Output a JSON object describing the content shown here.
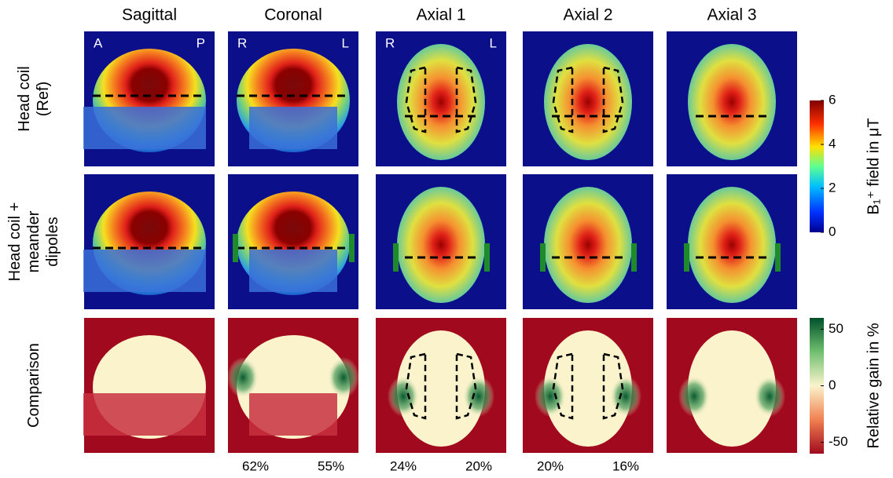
{
  "columns": [
    "Sagittal",
    "Coronal",
    "Axial 1",
    "Axial 2",
    "Axial 3"
  ],
  "rows": [
    [
      "Head coil",
      "(Ref)"
    ],
    [
      "Head coil +",
      "meander",
      "dipoles"
    ],
    [
      "Comparison"
    ]
  ],
  "orientation_labels": [
    [
      "A",
      "P"
    ],
    [
      "R",
      "L"
    ],
    [
      "R",
      "L"
    ]
  ],
  "bottom_labels": [
    [],
    [
      "62%",
      "55%"
    ],
    [
      "24%",
      "20%"
    ],
    [
      "20%",
      "16%"
    ],
    []
  ],
  "colorbars": [
    {
      "label": "B₁⁺ field in μT",
      "lim": [
        0,
        6
      ],
      "ticks": [
        0,
        2,
        4,
        6
      ]
    },
    {
      "label": "Relative gain in %",
      "lim": [
        -60,
        60
      ],
      "ticks": [
        -50,
        0,
        50
      ]
    }
  ]
}
